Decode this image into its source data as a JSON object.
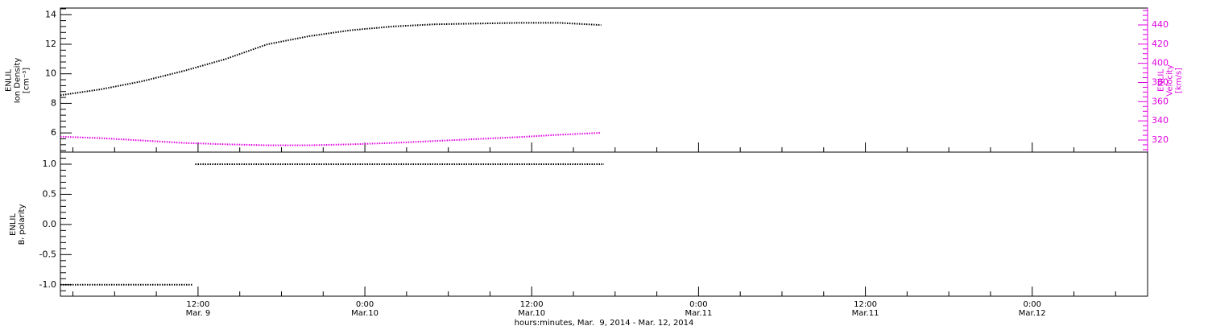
{
  "chart_data": [
    {
      "type": "line",
      "ylabel": "ENLIL\nIon Density\n[cm⁻³]",
      "y2label": "ENLIL\nVelocity\n[km/s]",
      "y2color": "#e000e0",
      "x": [
        2.1,
        5,
        8,
        11,
        14,
        17,
        20,
        23,
        26,
        29,
        32,
        35,
        38,
        41
      ],
      "series": [
        {
          "name": "Ion Density",
          "color": "#000000",
          "values": [
            8.55,
            8.95,
            9.5,
            10.2,
            11.0,
            12.0,
            12.55,
            12.95,
            13.2,
            13.35,
            13.4,
            13.45,
            13.45,
            13.3
          ]
        },
        {
          "name": "Velocity",
          "color": "#e000e0",
          "axis": "y2",
          "values": [
            323.5,
            322,
            319.5,
            317,
            315.5,
            314.5,
            314.5,
            315.5,
            317,
            319,
            321,
            323,
            325.5,
            327.5
          ]
        }
      ],
      "xlim": [
        2.1,
        80.3
      ],
      "xticks": [
        12,
        24,
        36,
        48,
        60,
        72
      ],
      "ylim": [
        4.7,
        14.45
      ],
      "yticks": [
        6,
        8,
        10,
        12,
        14
      ],
      "y2lim": [
        307.4,
        457.6
      ],
      "y2ticks": [
        320,
        340,
        360,
        380,
        400,
        420,
        440
      ]
    },
    {
      "type": "line",
      "ylabel": "ENLIL\nBᵣ polarity",
      "xlabel": "hours:minutes, Mar.  9, 2014 - Mar. 12, 2014",
      "x": [
        2.1,
        4,
        6,
        8,
        10,
        11.6,
        11.7,
        11.8,
        14,
        17,
        20,
        23,
        26,
        29,
        32,
        35,
        38,
        41.2
      ],
      "series": [
        {
          "name": "Br polarity",
          "color": "#000000",
          "values": [
            -1,
            -1,
            -1,
            -1,
            -1,
            -1,
            null,
            1,
            1,
            1,
            1,
            1,
            1,
            1,
            1,
            1,
            1,
            1
          ]
        }
      ],
      "xlim": [
        2.1,
        80.3
      ],
      "xticks": [
        {
          "value": 12,
          "label": "12:00\nMar. 9"
        },
        {
          "value": 24,
          "label": "0:00\nMar.10"
        },
        {
          "value": 36,
          "label": "12:00\nMar.10"
        },
        {
          "value": 48,
          "label": "0:00\nMar.11"
        },
        {
          "value": 60,
          "label": "12:00\nMar.11"
        },
        {
          "value": 72,
          "label": "0:00\nMar.12"
        }
      ],
      "ylim": [
        -1.19,
        1.2
      ],
      "yticks": [
        {
          "value": -1,
          "label": "-1.0"
        },
        {
          "value": -0.5,
          "label": "-0.5"
        },
        {
          "value": 0,
          "label": "0.0"
        },
        {
          "value": 0.5,
          "label": "0.5"
        },
        {
          "value": 1,
          "label": "1.0"
        }
      ]
    }
  ]
}
